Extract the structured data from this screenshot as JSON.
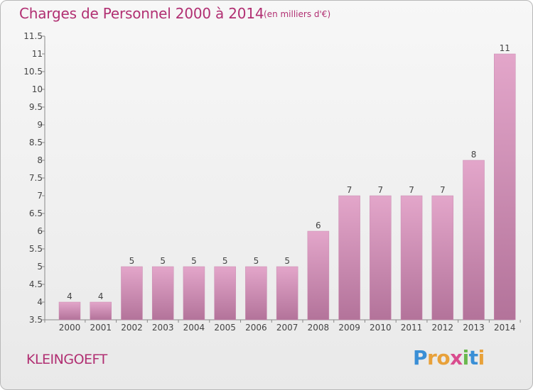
{
  "title": "Charges de Personnel 2000 à 2014",
  "subtitle": "(en milliers d'€)",
  "commune": "KLEINGOEFT",
  "brand": {
    "letters": [
      "P",
      "r",
      "o",
      "x",
      "i",
      "t",
      "i"
    ],
    "colors": [
      "#3a8fd6",
      "#e8a13a",
      "#e8a13a",
      "#d94c8e",
      "#6ab84e",
      "#3a8fd6",
      "#e8a13a"
    ]
  },
  "chart_data": {
    "type": "bar",
    "title": "Charges de Personnel 2000 à 2014",
    "subtitle": "(en milliers d'€)",
    "xlabel": "",
    "ylabel": "",
    "categories": [
      "2000",
      "2001",
      "2002",
      "2003",
      "2004",
      "2005",
      "2006",
      "2007",
      "2008",
      "2009",
      "2010",
      "2011",
      "2012",
      "2013",
      "2014"
    ],
    "values": [
      4,
      4,
      5,
      5,
      5,
      5,
      5,
      5,
      6,
      7,
      7,
      7,
      7,
      8,
      11
    ],
    "ylim": [
      3.5,
      11.5
    ],
    "yticks": [
      "3.5",
      "4",
      "4.5",
      "5",
      "5.5",
      "6",
      "6.5",
      "7",
      "7.5",
      "8",
      "8.5",
      "9",
      "9.5",
      "10",
      "10.5",
      "11",
      "11.5"
    ],
    "grid": false,
    "bar_color_top": "#e3a6ca",
    "bar_color_bottom": "#b3739a"
  }
}
